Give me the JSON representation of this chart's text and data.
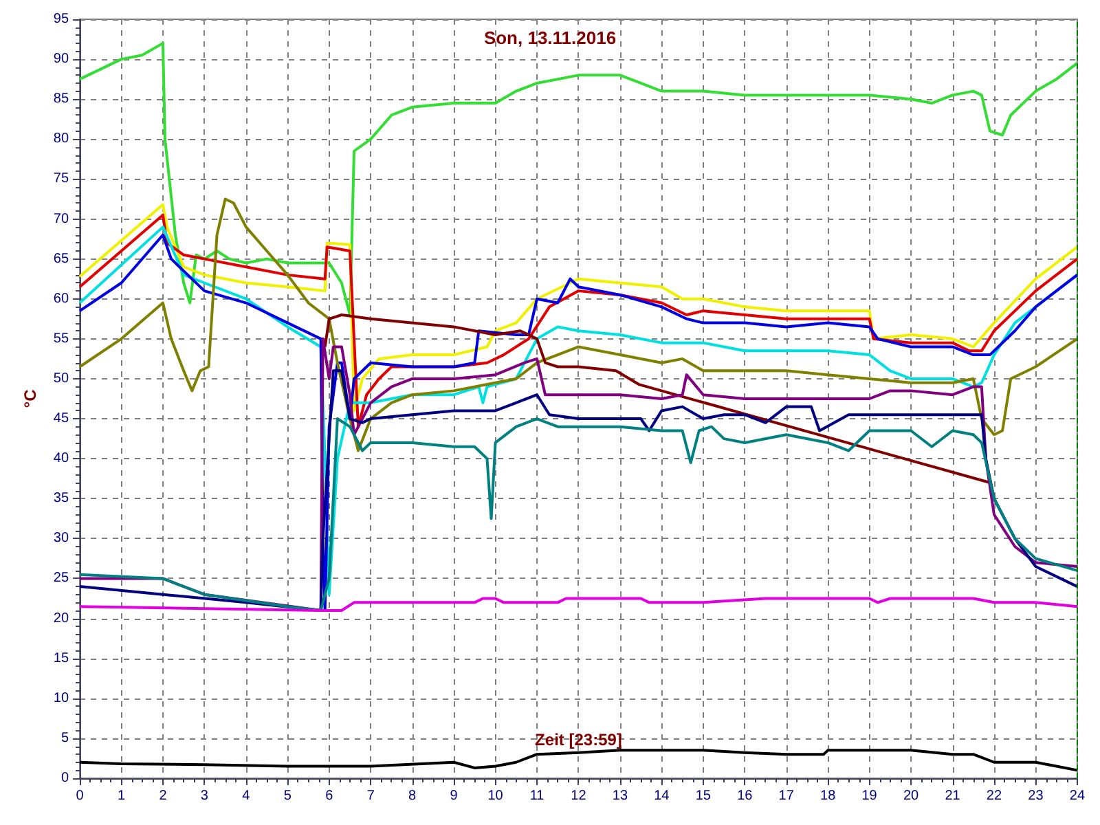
{
  "chart_data": {
    "type": "line",
    "title": "Son, 13.11.2016",
    "xlabel": "Zeit [23:59]",
    "ylabel": "°C",
    "xlim": [
      0,
      24
    ],
    "xticks": [
      0,
      1,
      2,
      3,
      4,
      5,
      6,
      7,
      8,
      9,
      10,
      11,
      12,
      13,
      14,
      15,
      16,
      17,
      18,
      19,
      20,
      21,
      22,
      23,
      24
    ],
    "ylim": [
      0,
      95
    ],
    "yticks": [
      0,
      5,
      10,
      15,
      20,
      25,
      30,
      35,
      40,
      45,
      50,
      55,
      60,
      65,
      70,
      75,
      80,
      85,
      90,
      95
    ],
    "grid": true,
    "marker": "none",
    "line_style": "solid",
    "ref_lines": [
      {
        "axis": "x",
        "value": 24,
        "color": "#008000",
        "line_style": "dashed"
      }
    ],
    "series": [
      {
        "color": "#33dd33",
        "x": [
          0,
          1,
          1.5,
          2,
          2.05,
          2.3,
          2.5,
          2.65,
          2.8,
          3,
          3.3,
          3.6,
          4,
          4.5,
          5,
          6,
          6.3,
          6.5,
          6.6,
          7,
          7.5,
          8,
          9,
          10,
          10.5,
          11,
          12,
          13,
          13.5,
          14,
          14.5,
          15,
          16,
          19,
          20,
          20.5,
          21,
          21.5,
          21.7,
          21.9,
          22.2,
          22.4,
          23,
          23.5,
          24
        ],
        "values": [
          87.5,
          90,
          90.5,
          92,
          80,
          68,
          62,
          59.5,
          65.5,
          65,
          66,
          65,
          64.5,
          65,
          64.5,
          64.5,
          62,
          58,
          78.5,
          80,
          83,
          84,
          84.5,
          84.5,
          86,
          87,
          88,
          88,
          87,
          86,
          86,
          86,
          85.5,
          85.5,
          85,
          84.5,
          85.5,
          86,
          85.5,
          81,
          80.5,
          83,
          86,
          87.5,
          89.5
        ]
      },
      {
        "color": "#f0f000",
        "x": [
          0,
          2,
          2.1,
          2.5,
          3,
          4,
          5,
          5.9,
          5.95,
          6.5,
          6.6,
          6.8,
          7.2,
          8,
          9,
          9.8,
          10,
          10.5,
          11,
          12,
          13,
          14,
          14.5,
          15,
          16,
          17,
          18,
          19,
          19.1,
          20,
          21,
          21.5,
          22,
          23,
          24
        ],
        "values": [
          62.8,
          71.8,
          69,
          64,
          63,
          62,
          61.5,
          61,
          67,
          66.8,
          46,
          50,
          52.5,
          53,
          53,
          54,
          56,
          57,
          60,
          62.5,
          62,
          61.5,
          60,
          60,
          59,
          58.5,
          58.5,
          58.5,
          55,
          55.5,
          55,
          54,
          57,
          62.5,
          66.5
        ]
      },
      {
        "color": "#e00000",
        "x": [
          0,
          2,
          2.1,
          2.5,
          3,
          4,
          5,
          5.9,
          5.95,
          6.5,
          6.6,
          6.7,
          6.9,
          7.2,
          7.5,
          9,
          9.8,
          10.2,
          10.8,
          11.3,
          12,
          13,
          14,
          14.6,
          15,
          16,
          17,
          18,
          19,
          19.1,
          20,
          21,
          21.4,
          21.7,
          22,
          23,
          24
        ],
        "values": [
          61.5,
          70.5,
          67,
          65.5,
          65,
          64,
          63,
          62.5,
          66.5,
          66,
          55,
          44,
          48,
          50,
          51.5,
          51.5,
          52,
          53,
          55,
          59,
          61,
          60.5,
          59.5,
          58,
          58.5,
          58,
          57.5,
          57.5,
          57.5,
          55,
          54.5,
          54.5,
          53.5,
          53.5,
          56,
          61,
          65
        ]
      },
      {
        "color": "#00e0e0",
        "x": [
          0,
          2,
          2.5,
          3,
          4,
          5,
          5.8,
          5.9,
          6,
          6.2,
          6.5,
          7,
          8,
          9,
          9.6,
          9.7,
          9.8,
          10.5,
          11,
          11.5,
          12,
          13,
          14,
          15,
          16,
          17,
          18,
          19,
          19.5,
          20,
          21,
          21.5,
          21.7,
          22,
          22.5,
          23,
          24
        ],
        "values": [
          59.5,
          69,
          63,
          62,
          60,
          56.5,
          54,
          40,
          23,
          40,
          47,
          47,
          48,
          48,
          49,
          47,
          49,
          50,
          55,
          56.5,
          56,
          55.5,
          54.5,
          54.5,
          53.5,
          53.5,
          53.5,
          53,
          51,
          50,
          50,
          49,
          49.5,
          53,
          57,
          59,
          63
        ]
      },
      {
        "color": "#0000e0",
        "x": [
          0,
          1,
          2,
          2.2,
          3,
          4,
          5,
          5.8,
          5.85,
          5.9,
          6,
          6.2,
          6.3,
          6.5,
          6.6,
          7,
          8,
          9,
          9.5,
          9.6,
          10.5,
          10.8,
          11,
          11.5,
          11.8,
          12,
          13,
          14,
          14.6,
          15,
          16,
          17,
          18,
          19,
          19.2,
          20,
          21,
          21.5,
          21.9,
          22.5,
          23,
          24
        ],
        "values": [
          58.5,
          62,
          68,
          65,
          61,
          59.5,
          57,
          55,
          30,
          21,
          44,
          52,
          52,
          45,
          50,
          52,
          51.5,
          51.5,
          52,
          56,
          55.5,
          55.5,
          60,
          59.5,
          62.5,
          61.5,
          60.5,
          59,
          57.5,
          57,
          57,
          56.5,
          57,
          56.5,
          55,
          54,
          54,
          53,
          53,
          56,
          59,
          63
        ]
      },
      {
        "color": "#808000",
        "x": [
          0,
          1,
          2,
          2.2,
          2.5,
          2.7,
          2.9,
          3.1,
          3.3,
          3.5,
          3.7,
          4,
          4.5,
          5,
          5.5,
          6,
          6.2,
          6.5,
          6.7,
          7,
          7.5,
          8,
          9,
          10,
          10.5,
          11,
          12,
          13,
          14,
          14.5,
          15,
          16,
          17,
          18,
          19,
          20,
          21,
          21.5,
          21.7,
          22,
          22.2,
          22.4,
          23,
          24
        ],
        "values": [
          51.5,
          55,
          59.5,
          55,
          51,
          48.5,
          51,
          51.5,
          68,
          72.5,
          72,
          69,
          66,
          63,
          59.5,
          57.5,
          52,
          45,
          41,
          45,
          47,
          48,
          48.5,
          49.5,
          50,
          52,
          54,
          53,
          52,
          52.5,
          51,
          51,
          51,
          50.5,
          50,
          49.5,
          49.5,
          50,
          45,
          43,
          43.5,
          50,
          51.5,
          55
        ]
      },
      {
        "color": "#800000",
        "x": [
          5.9,
          6,
          6.3,
          7,
          9,
          10,
          10.6,
          11,
          11.2,
          11.5,
          12,
          12.9,
          13.45,
          21.9
        ],
        "values": [
          54,
          57.5,
          58,
          57.5,
          56.5,
          55.5,
          56,
          55,
          52,
          51.5,
          51.5,
          51,
          49.3,
          37
        ]
      },
      {
        "color": "#800080",
        "x": [
          0,
          2,
          3,
          5.8,
          5.85,
          6,
          6.1,
          6.3,
          6.5,
          6.6,
          7,
          7.5,
          8,
          9,
          10,
          10.7,
          11,
          11.2,
          12,
          13,
          14,
          14.5,
          14.6,
          15,
          16,
          17,
          18,
          19,
          19.5,
          20,
          21,
          21.5,
          21.7,
          21.8,
          22,
          22.5,
          23,
          24
        ],
        "values": [
          25,
          25,
          23,
          21,
          55,
          50,
          54,
          54,
          48,
          43,
          47,
          49,
          50,
          50,
          50.5,
          52,
          52.5,
          48,
          48,
          48,
          47.5,
          48,
          50.5,
          48,
          47.5,
          47.5,
          47.5,
          47.5,
          48.5,
          48.5,
          48,
          49,
          49,
          40,
          33,
          29,
          27,
          26.5
        ]
      },
      {
        "color": "#000080",
        "x": [
          0,
          2,
          4,
          5.8,
          5.85,
          6.1,
          6.3,
          6.5,
          6.8,
          7,
          8,
          9,
          10,
          10.5,
          11,
          11.3,
          12,
          13,
          13.5,
          13.7,
          14,
          14.5,
          15,
          15.5,
          16,
          16.5,
          17,
          17.6,
          17.8,
          18.5,
          19,
          20,
          21,
          21.7,
          21.8,
          22,
          22.5,
          23,
          24
        ],
        "values": [
          24,
          23,
          22,
          21,
          30,
          51,
          51,
          45,
          44.5,
          45,
          45.5,
          46,
          46,
          47,
          48,
          45.5,
          45,
          45,
          45,
          43.5,
          46,
          46.5,
          45,
          45.5,
          45.5,
          44.5,
          46.5,
          46.5,
          43.5,
          45.5,
          45.5,
          45.5,
          45.5,
          45.5,
          40,
          35,
          30,
          26.5,
          24
        ]
      },
      {
        "color": "#008080",
        "x": [
          0,
          2,
          3,
          5,
          5.8,
          6,
          6.2,
          6.5,
          6.8,
          7,
          8,
          9,
          9.5,
          9.8,
          9.9,
          10,
          10.5,
          11,
          11.5,
          12,
          13,
          14,
          14.5,
          14.7,
          14.9,
          15.2,
          15.5,
          16,
          17,
          18,
          18.5,
          19,
          20,
          20.5,
          21,
          21.5,
          21.7,
          22,
          22.5,
          23,
          24
        ],
        "values": [
          25.5,
          25,
          23,
          21.5,
          21,
          25,
          45,
          44,
          41,
          42,
          42,
          41.5,
          41.5,
          40,
          32.5,
          42,
          44,
          45,
          44,
          44,
          44,
          43.5,
          43.5,
          39.5,
          43.5,
          44,
          42.5,
          42,
          43,
          42,
          41,
          43.5,
          43.5,
          41.5,
          43.5,
          43,
          42,
          35,
          30,
          27.5,
          26
        ]
      },
      {
        "color": "#e000e0",
        "x": [
          0,
          5.8,
          6.3,
          6.6,
          9.5,
          9.7,
          10,
          10.2,
          11.5,
          11.7,
          13.5,
          13.7,
          15,
          16.5,
          18,
          19,
          19.2,
          19.5,
          21.5,
          22,
          23,
          24
        ],
        "values": [
          21.5,
          21,
          21,
          22,
          22,
          22.5,
          22.5,
          22,
          22,
          22.5,
          22.5,
          22,
          22,
          22.5,
          22.5,
          22.5,
          22,
          22.5,
          22.5,
          22,
          22,
          21.5
        ]
      },
      {
        "color": "#000000",
        "x": [
          0,
          1,
          3,
          5,
          7,
          9,
          9.5,
          10,
          10.5,
          11,
          12,
          13,
          15,
          16,
          17,
          17.9,
          18,
          20,
          21,
          21.5,
          22,
          23,
          23.5,
          24
        ],
        "values": [
          2,
          1.8,
          1.7,
          1.5,
          1.5,
          2,
          1.3,
          1.5,
          2,
          3,
          3.2,
          3.5,
          3.5,
          3.2,
          3,
          3,
          3.5,
          3.5,
          3,
          3,
          2,
          2,
          1.5,
          1
        ]
      }
    ]
  }
}
